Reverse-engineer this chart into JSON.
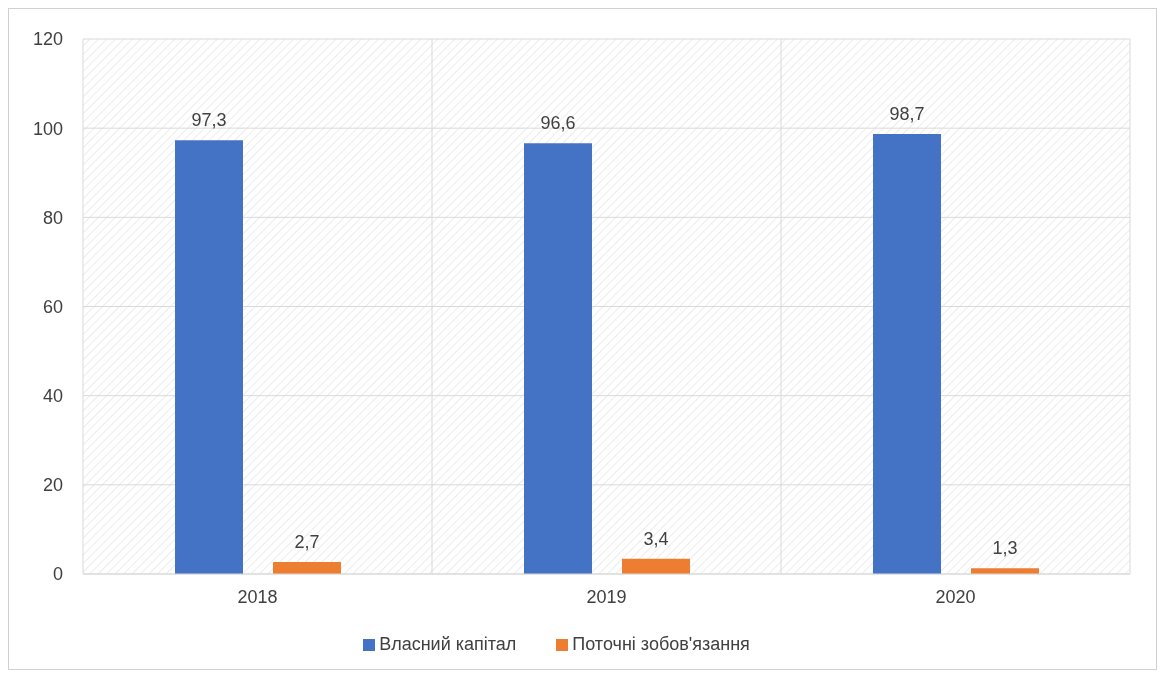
{
  "chart_data": {
    "type": "bar",
    "categories": [
      "2018",
      "2019",
      "2020"
    ],
    "series": [
      {
        "name": "Власний капітал",
        "color": "#4472c4",
        "values": [
          97.3,
          96.6,
          98.7
        ],
        "value_labels": [
          "97,3",
          "96,6",
          "98,7"
        ]
      },
      {
        "name": "Поточні зобов'язання",
        "color": "#ed7d31",
        "values": [
          2.7,
          3.4,
          1.3
        ],
        "value_labels": [
          "2,7",
          "3,4",
          "1,3"
        ]
      }
    ],
    "ylim": [
      0,
      120
    ],
    "yticks": [
      0,
      20,
      40,
      60,
      80,
      100,
      120
    ],
    "grid": true,
    "legend": "bottom"
  }
}
